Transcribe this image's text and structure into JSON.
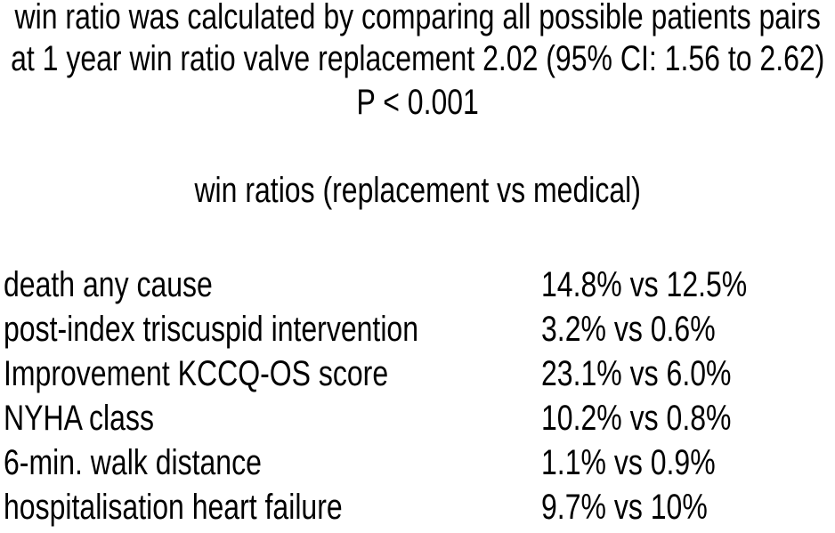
{
  "figure": {
    "intro_line1": "win ratio was calculated by comparing all possible patients pairs",
    "intro_line2": "at 1 year win ratio valve replacement 2.02 (95% CI: 1.56 to 2.62)",
    "p_value": "P < 0.001",
    "subtitle": "win ratios (replacement vs medical)",
    "comparison_groups": "replacement vs medical",
    "rows": [
      {
        "label": "death any cause",
        "value": "14.8% vs 12.5%"
      },
      {
        "label": "post-index triscuspid intervention",
        "value": "3.2% vs 0.6%"
      },
      {
        "label": "Improvement KCCQ-OS score",
        "value": "23.1% vs 6.0%"
      },
      {
        "label": "NYHA class",
        "value": "10.2% vs 0.8%"
      },
      {
        "label": "6-min. walk distance",
        "value": "1.1% vs 0.9%"
      },
      {
        "label": "hospitalisation heart failure",
        "value": "9.7% vs 10%"
      }
    ],
    "colors": {
      "background": "#ffffff",
      "text": "#000000"
    }
  }
}
